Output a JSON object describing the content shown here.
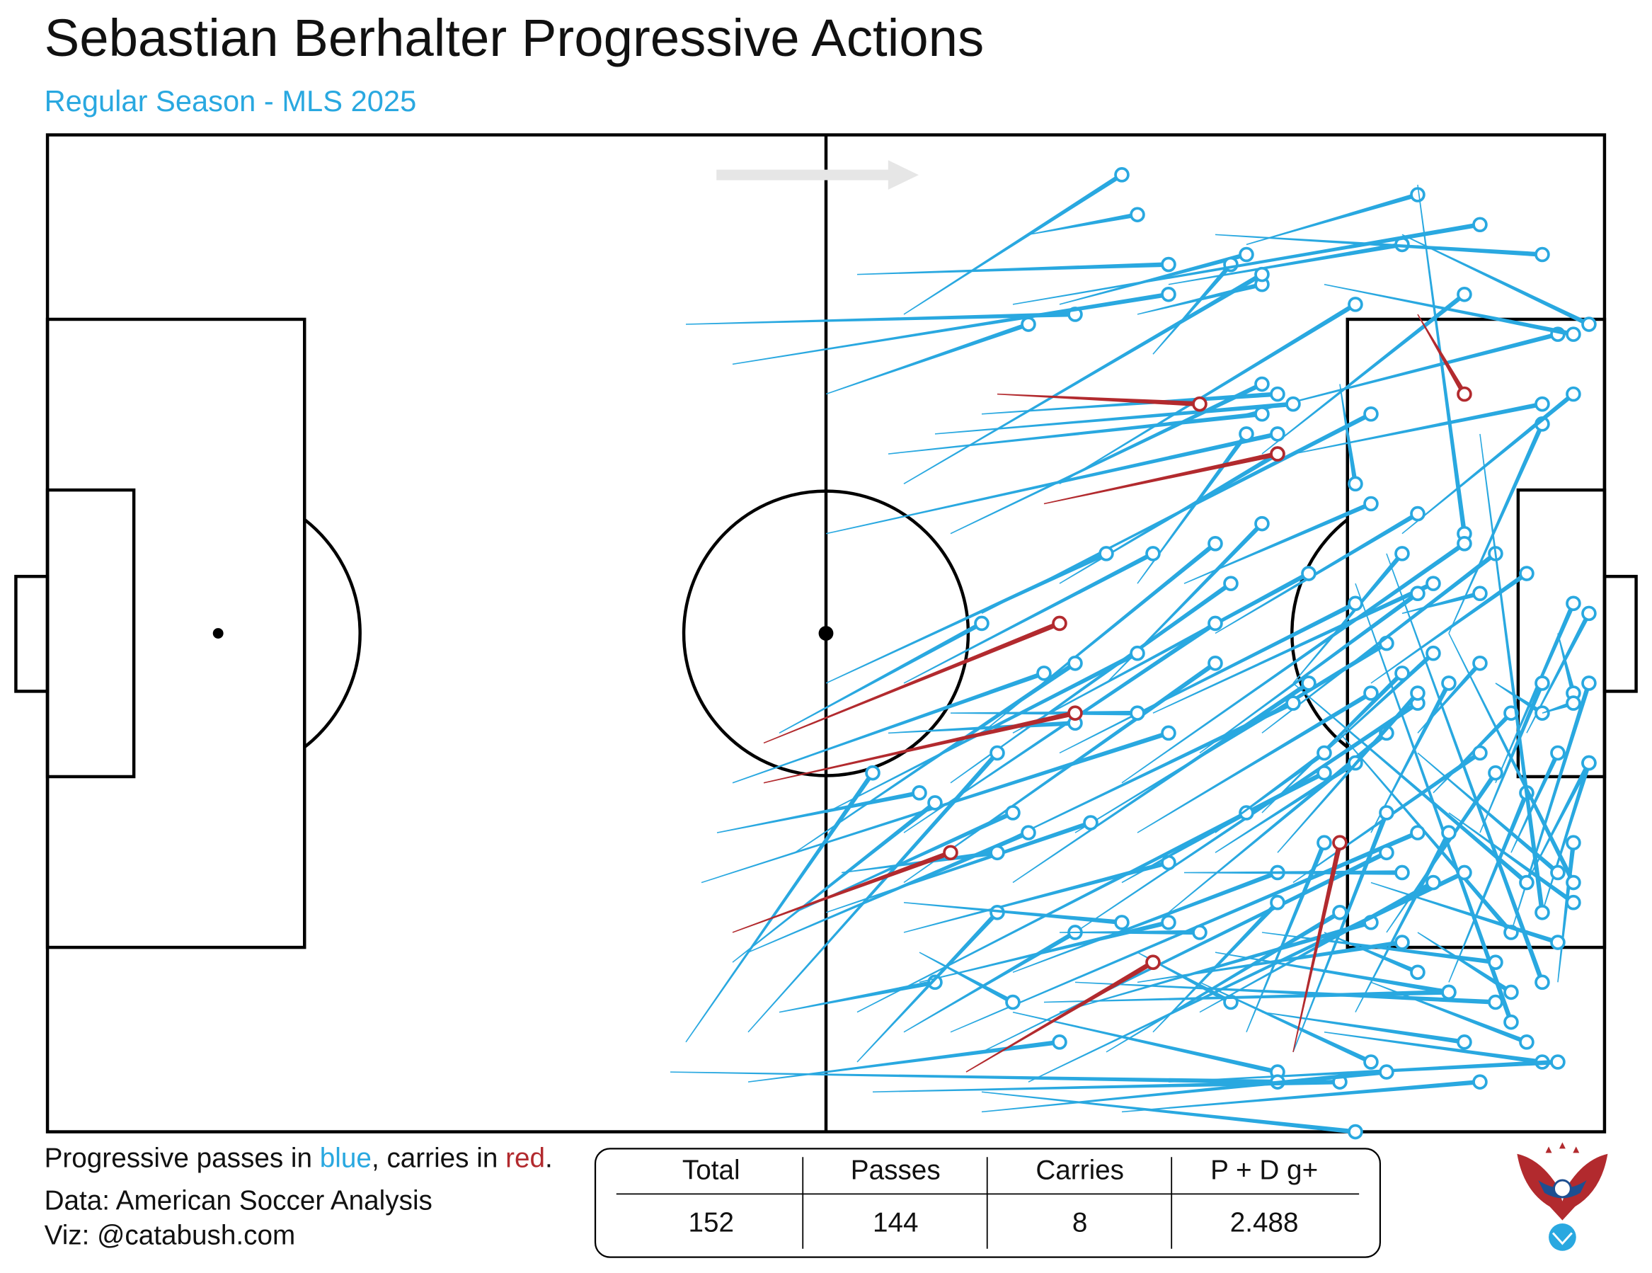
{
  "chart_data": {
    "type": "passmap",
    "title": "Sebastian Berhalter Progressive Actions",
    "subtitle": "Regular Season - MLS 2025",
    "note": [
      "Progressive passes in ",
      "blue",
      ", carries in ",
      "red",
      "."
    ],
    "credits": [
      "Data: American Soccer Analysis",
      "Viz: @catabush.com"
    ],
    "xlim": [
      0,
      100
    ],
    "ylim": [
      0,
      100
    ],
    "series": [
      {
        "name": "Progressive passes",
        "color": "#29a8e0",
        "values": [
          [
            55,
            18,
            69,
            4
          ],
          [
            63,
            10,
            70,
            8
          ],
          [
            50,
            26,
            63,
            19
          ],
          [
            52,
            14,
            72,
            13
          ],
          [
            65,
            17,
            77,
            12
          ],
          [
            72,
            15,
            87,
            11
          ],
          [
            71,
            22,
            76,
            13
          ],
          [
            77,
            11,
            88,
            6
          ],
          [
            75,
            10,
            96,
            12
          ],
          [
            62,
            17,
            92,
            9
          ],
          [
            70,
            18,
            78,
            15
          ],
          [
            41,
            19,
            66,
            18
          ],
          [
            44,
            23,
            72,
            16
          ],
          [
            55,
            35,
            78,
            14
          ],
          [
            65,
            35,
            84,
            17
          ],
          [
            78,
            32,
            91,
            16
          ],
          [
            77,
            28,
            97,
            20
          ],
          [
            82,
            15,
            98,
            20
          ],
          [
            87,
            10,
            99,
            19
          ],
          [
            58,
            40,
            78,
            25
          ],
          [
            60,
            28,
            79,
            26
          ],
          [
            57,
            30,
            80,
            27
          ],
          [
            54,
            32,
            78,
            28
          ],
          [
            50,
            40,
            79,
            30
          ],
          [
            65,
            45,
            79,
            32
          ],
          [
            60,
            48,
            85,
            28
          ],
          [
            80,
            32,
            96,
            27
          ],
          [
            88,
            5,
            91,
            40
          ],
          [
            90,
            50,
            96,
            29
          ],
          [
            87,
            40,
            98,
            26
          ],
          [
            70,
            45,
            77,
            30
          ],
          [
            83,
            25,
            84,
            35
          ],
          [
            73,
            45,
            85,
            37
          ],
          [
            75,
            50,
            88,
            38
          ],
          [
            68,
            55,
            78,
            39
          ],
          [
            60,
            60,
            75,
            41
          ],
          [
            55,
            55,
            71,
            42
          ],
          [
            62,
            60,
            81,
            44
          ],
          [
            71,
            58,
            89,
            45
          ],
          [
            80,
            55,
            87,
            42
          ],
          [
            65,
            62,
            84,
            47
          ],
          [
            58,
            65,
            76,
            45
          ],
          [
            50,
            55,
            68,
            42
          ],
          [
            47,
            60,
            60,
            49
          ],
          [
            55,
            70,
            75,
            49
          ],
          [
            66,
            70,
            86,
            51
          ],
          [
            74,
            62,
            88,
            46
          ],
          [
            69,
            65,
            91,
            41
          ],
          [
            78,
            60,
            93,
            42
          ],
          [
            85,
            55,
            95,
            44
          ],
          [
            87,
            48,
            92,
            46
          ],
          [
            82,
            62,
            89,
            52
          ],
          [
            88,
            60,
            92,
            53
          ],
          [
            93,
            65,
            98,
            47
          ],
          [
            95,
            60,
            99,
            48
          ],
          [
            93,
            55,
            96,
            58
          ],
          [
            92,
            70,
            96,
            55
          ],
          [
            89,
            66,
            94,
            58
          ],
          [
            85,
            70,
            90,
            55
          ],
          [
            78,
            68,
            87,
            54
          ],
          [
            70,
            70,
            85,
            56
          ],
          [
            60,
            72,
            80,
            57
          ],
          [
            55,
            75,
            75,
            53
          ],
          [
            62,
            75,
            81,
            55
          ],
          [
            66,
            80,
            88,
            57
          ],
          [
            72,
            78,
            86,
            60
          ],
          [
            75,
            72,
            84,
            63
          ],
          [
            80,
            75,
            92,
            62
          ],
          [
            86,
            80,
            93,
            64
          ],
          [
            90,
            85,
            95,
            66
          ],
          [
            94,
            80,
            99,
            55
          ],
          [
            97,
            50,
            98,
            56
          ],
          [
            96,
            58,
            98,
            57
          ],
          [
            94,
            72,
            97,
            62
          ],
          [
            95,
            75,
            99,
            63
          ],
          [
            96,
            78,
            99,
            63
          ],
          [
            97,
            85,
            98,
            71
          ],
          [
            92,
            30,
            96,
            78
          ],
          [
            90,
            50,
            98,
            75
          ],
          [
            86,
            42,
            96,
            85
          ],
          [
            84,
            45,
            94,
            89
          ],
          [
            80,
            55,
            95,
            75
          ],
          [
            83,
            60,
            94,
            80
          ],
          [
            88,
            62,
            97,
            74
          ],
          [
            90,
            68,
            98,
            77
          ],
          [
            85,
            75,
            97,
            81
          ],
          [
            78,
            80,
            93,
            83
          ],
          [
            75,
            82,
            90,
            86
          ],
          [
            70,
            85,
            87,
            81
          ],
          [
            65,
            88,
            85,
            79
          ],
          [
            62,
            84,
            79,
            74
          ],
          [
            55,
            80,
            72,
            73
          ],
          [
            50,
            78,
            67,
            69
          ],
          [
            45,
            82,
            63,
            70
          ],
          [
            45,
            90,
            61,
            62
          ],
          [
            48,
            72,
            66,
            53
          ],
          [
            50,
            68,
            70,
            52
          ],
          [
            44,
            65,
            64,
            54
          ],
          [
            43,
            70,
            56,
            66
          ],
          [
            42,
            75,
            72,
            60
          ],
          [
            52,
            88,
            82,
            64
          ],
          [
            58,
            90,
            88,
            70
          ],
          [
            60,
            92,
            86,
            72
          ],
          [
            63,
            95,
            91,
            74
          ],
          [
            68,
            92,
            83,
            78
          ],
          [
            71,
            90,
            79,
            77
          ],
          [
            74,
            88,
            89,
            75
          ],
          [
            77,
            90,
            82,
            71
          ],
          [
            80,
            92,
            86,
            68
          ],
          [
            84,
            88,
            90,
            70
          ],
          [
            56,
            82,
            62,
            87
          ],
          [
            55,
            90,
            66,
            80
          ],
          [
            60,
            96,
            84,
            100
          ],
          [
            62,
            88,
            79,
            94
          ],
          [
            45,
            95,
            65,
            91
          ],
          [
            47,
            88,
            57,
            85
          ],
          [
            52,
            93,
            61,
            78
          ],
          [
            56,
            85,
            72,
            79
          ],
          [
            65,
            80,
            74,
            80
          ],
          [
            70,
            82,
            76,
            87
          ],
          [
            74,
            85,
            85,
            93
          ],
          [
            78,
            88,
            91,
            91
          ],
          [
            82,
            90,
            96,
            93
          ],
          [
            85,
            85,
            95,
            91
          ],
          [
            88,
            80,
            94,
            86
          ],
          [
            72,
            95,
            97,
            93
          ],
          [
            69,
            98,
            92,
            95
          ],
          [
            40,
            94,
            79,
            95
          ],
          [
            53,
            96,
            83,
            95
          ],
          [
            60,
            98,
            86,
            94
          ],
          [
            64,
            87,
            90,
            86
          ],
          [
            66,
            85,
            93,
            87
          ],
          [
            55,
            77,
            69,
            79
          ],
          [
            51,
            74,
            61,
            72
          ],
          [
            48,
            78,
            62,
            68
          ],
          [
            44,
            83,
            57,
            67
          ],
          [
            41,
            91,
            53,
            64
          ],
          [
            54,
            60,
            66,
            59
          ],
          [
            58,
            58,
            70,
            58
          ],
          [
            69,
            75,
            77,
            68
          ],
          [
            73,
            74,
            87,
            74
          ],
          [
            75,
            70,
            82,
            62
          ],
          [
            79,
            72,
            88,
            56
          ],
          [
            82,
            80,
            88,
            84
          ]
        ]
      },
      {
        "name": "Progressive carries",
        "color": "#b22a2e",
        "values": [
          [
            61,
            26,
            74,
            27
          ],
          [
            64,
            37,
            79,
            32
          ],
          [
            46,
            61,
            65,
            49
          ],
          [
            46,
            65,
            66,
            58
          ],
          [
            44,
            80,
            58,
            72
          ],
          [
            59,
            94,
            71,
            83
          ],
          [
            80,
            92,
            83,
            71
          ],
          [
            88,
            18,
            91,
            26
          ]
        ]
      }
    ],
    "table": {
      "headers": [
        "Total",
        "Passes",
        "Carries",
        "P + D g+"
      ],
      "values": [
        152,
        144,
        8,
        2.488
      ]
    }
  }
}
